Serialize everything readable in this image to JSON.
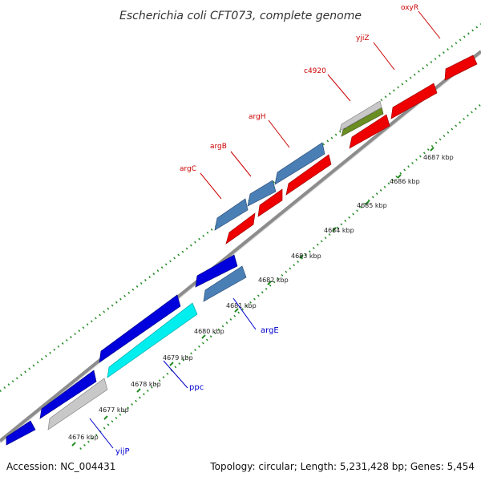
{
  "title": "Escherichia coli CFT073, complete genome",
  "footer": {
    "accession": "Accession: NC_004431",
    "summary": "Topology: circular; Length: 5,231,428 bp; Genes: 5,454"
  },
  "colors": {
    "backbone": "#8c8c8c",
    "tick": "#228b22",
    "forward_gene": "#ee0000",
    "reverse_gene": "#0000dd",
    "steelblue_gene": "#4a7fb5",
    "gray_gene": "#c8c8c8",
    "olive_gene": "#6b8e23",
    "cyan_gene": "#00eeee",
    "label_forward": "#cc0000",
    "label_reverse": "#0000cc"
  },
  "scale_labels": [
    "4676 kbp",
    "4677 kbp",
    "4678 kbp",
    "4679 kbp",
    "4680 kbp",
    "4681 kbp",
    "4682 kbp",
    "4683 kbp",
    "4684 kbp",
    "4685 kbp",
    "4686 kbp",
    "4687 kbp"
  ],
  "gene_labels": {
    "forward": [
      "argC",
      "argB",
      "argH",
      "c4920",
      "yjiZ",
      "oxyR"
    ],
    "reverse": [
      "yijP",
      "ppc",
      "argE"
    ]
  }
}
